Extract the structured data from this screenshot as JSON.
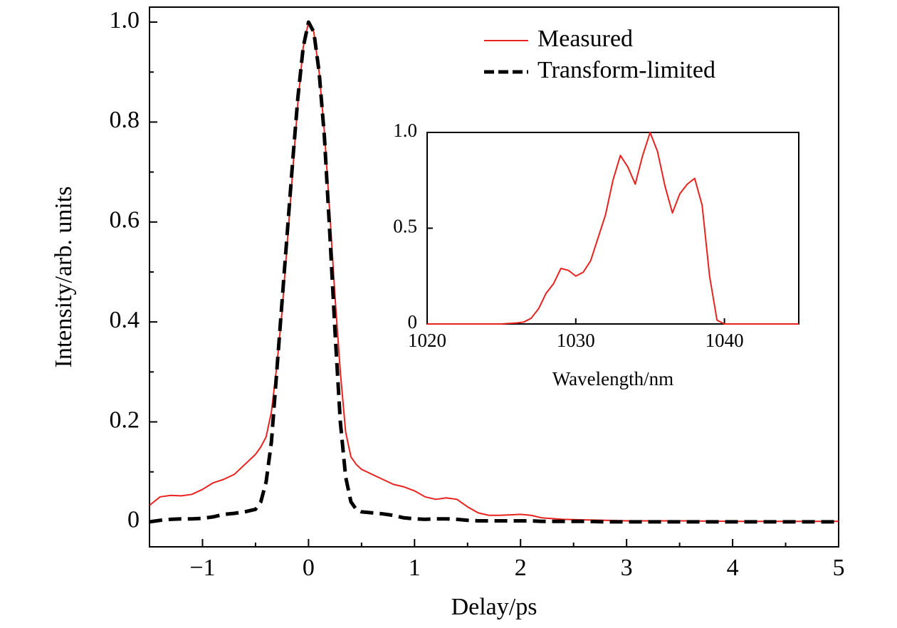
{
  "chart_data": [
    {
      "type": "line",
      "xlabel": "Delay/ps",
      "ylabel": "Intensity/arb. units",
      "xlim": [
        -1.5,
        5
      ],
      "ylim": [
        -0.05,
        1.03
      ],
      "xticks": [
        {
          "value": -1,
          "label": "−1"
        },
        0,
        1,
        2,
        3,
        4,
        5
      ],
      "yticks": [
        0,
        0.2,
        0.4,
        0.6,
        0.8,
        {
          "value": 1.0,
          "label": "1.0"
        }
      ],
      "x_minor_ticks": [
        -1.5,
        -0.5,
        0.5,
        1.5,
        2.5,
        3.5,
        4.5
      ],
      "y_minor_ticks": [
        0.1,
        0.3,
        0.5,
        0.7,
        0.9
      ],
      "legend": "upper right",
      "x": [
        -1.5,
        -1.4,
        -1.3,
        -1.2,
        -1.1,
        -1.0,
        -0.9,
        -0.8,
        -0.7,
        -0.6,
        -0.5,
        -0.45,
        -0.4,
        -0.35,
        -0.3,
        -0.25,
        -0.2,
        -0.15,
        -0.1,
        -0.05,
        0,
        0.05,
        0.1,
        0.15,
        0.2,
        0.25,
        0.3,
        0.35,
        0.4,
        0.45,
        0.5,
        0.6,
        0.7,
        0.8,
        0.9,
        1.0,
        1.1,
        1.2,
        1.3,
        1.4,
        1.5,
        1.6,
        1.7,
        1.8,
        1.9,
        2.0,
        2.1,
        2.2,
        2.4,
        2.6,
        2.8,
        3.0,
        3.5,
        4.0,
        4.5,
        5.0
      ],
      "series": [
        {
          "name": "Measured",
          "color": "#e8221e",
          "linestyle": "solid",
          "values": [
            0.033,
            0.05,
            0.053,
            0.052,
            0.055,
            0.065,
            0.078,
            0.085,
            0.095,
            0.115,
            0.135,
            0.15,
            0.17,
            0.22,
            0.31,
            0.42,
            0.56,
            0.7,
            0.84,
            0.95,
            1.0,
            0.98,
            0.9,
            0.78,
            0.62,
            0.45,
            0.3,
            0.18,
            0.13,
            0.115,
            0.105,
            0.095,
            0.085,
            0.075,
            0.07,
            0.062,
            0.05,
            0.045,
            0.048,
            0.045,
            0.03,
            0.018,
            0.013,
            0.013,
            0.014,
            0.015,
            0.013,
            0.008,
            0.005,
            0.004,
            0.003,
            0.002,
            0.002,
            0.001,
            0.001,
            0.001
          ]
        },
        {
          "name": "Transform-limited",
          "color": "#000000",
          "linestyle": "dashed",
          "values": [
            0,
            0.003,
            0.005,
            0.006,
            0.006,
            0.007,
            0.01,
            0.015,
            0.017,
            0.02,
            0.025,
            0.04,
            0.08,
            0.16,
            0.3,
            0.44,
            0.58,
            0.72,
            0.85,
            0.95,
            1.0,
            0.98,
            0.9,
            0.77,
            0.58,
            0.38,
            0.2,
            0.09,
            0.04,
            0.025,
            0.02,
            0.018,
            0.016,
            0.013,
            0.008,
            0.006,
            0.005,
            0.006,
            0.006,
            0.005,
            0.003,
            0.002,
            0.002,
            0.002,
            0.002,
            0.002,
            0.002,
            0.001,
            0.001,
            0.001,
            0,
            0,
            0,
            0,
            0,
            0
          ]
        }
      ]
    },
    {
      "type": "line",
      "xlabel": "Wavelength/nm",
      "xlim": [
        1020,
        1045
      ],
      "ylim": [
        0,
        1
      ],
      "xticks": [
        1020,
        1030,
        1040
      ],
      "yticks": [
        0,
        0.5,
        {
          "value": 1.0,
          "label": "1.0"
        }
      ],
      "x": [
        1020,
        1025,
        1025.5,
        1026,
        1026.5,
        1027,
        1027.5,
        1028,
        1028.5,
        1029,
        1029.5,
        1030,
        1030.5,
        1031,
        1031.5,
        1032,
        1032.5,
        1033,
        1033.5,
        1034,
        1034.5,
        1035,
        1035.5,
        1036,
        1036.5,
        1037,
        1037.5,
        1038,
        1038.5,
        1039,
        1039.5,
        1040,
        1045
      ],
      "series": [
        {
          "color": "#e8221e",
          "linestyle": "solid",
          "values": [
            0,
            0,
            0.003,
            0.005,
            0.01,
            0.03,
            0.08,
            0.16,
            0.21,
            0.29,
            0.28,
            0.25,
            0.27,
            0.33,
            0.45,
            0.57,
            0.75,
            0.88,
            0.82,
            0.73,
            0.88,
            1.0,
            0.9,
            0.72,
            0.58,
            0.68,
            0.73,
            0.76,
            0.62,
            0.25,
            0.02,
            0,
            0
          ]
        }
      ]
    }
  ]
}
